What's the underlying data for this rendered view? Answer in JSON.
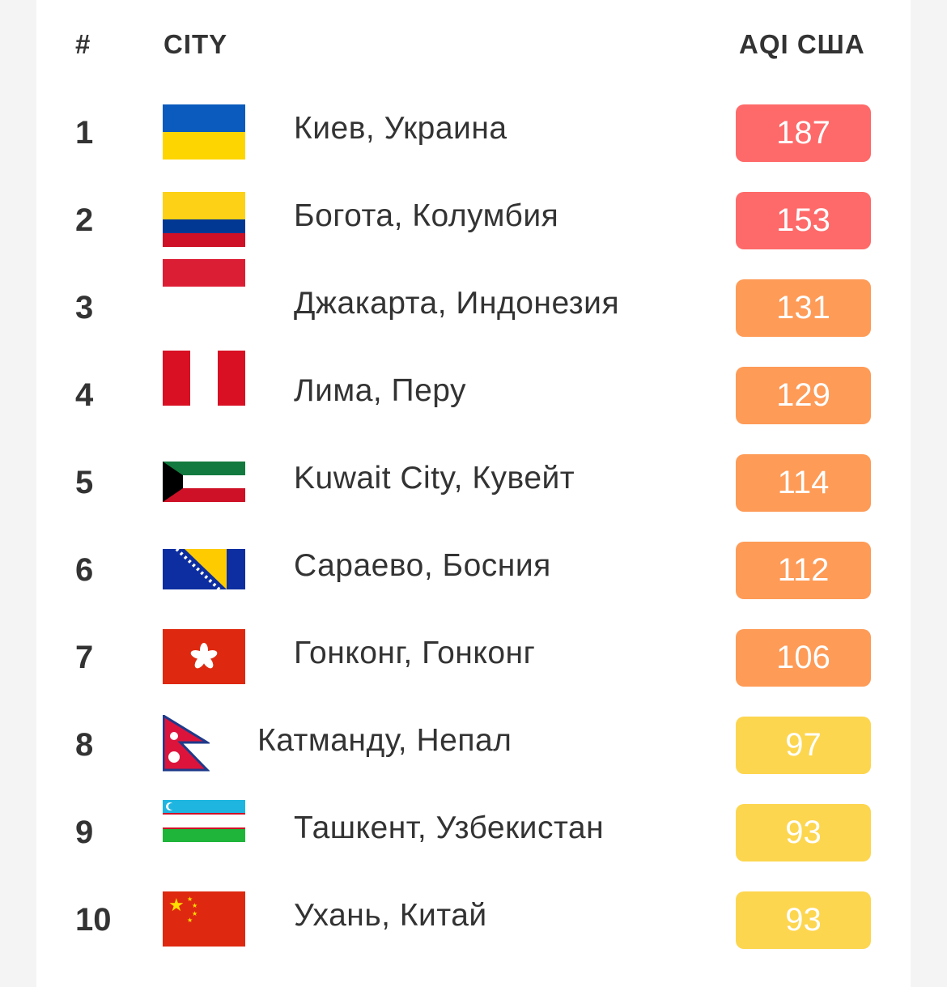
{
  "header": {
    "rank": "#",
    "city": "CITY",
    "aqi": "AQI США"
  },
  "colors": {
    "unhealthy": "#fe6a69",
    "sensitive": "#fe9b57",
    "moderate": "#fdd64f"
  },
  "rows": [
    {
      "rank": "1",
      "flag": "ukraine-flag-icon",
      "city": "Киев, Украина",
      "aqi": "187",
      "level": "unhealthy"
    },
    {
      "rank": "2",
      "flag": "colombia-flag-icon",
      "city": "Богота, Колумбия",
      "aqi": "153",
      "level": "unhealthy"
    },
    {
      "rank": "3",
      "flag": "indonesia-flag-icon",
      "city": "Джакарта, Индонезия",
      "aqi": "131",
      "level": "sensitive"
    },
    {
      "rank": "4",
      "flag": "peru-flag-icon",
      "city": "Лима, Перу",
      "aqi": "129",
      "level": "sensitive"
    },
    {
      "rank": "5",
      "flag": "kuwait-flag-icon",
      "city": "Kuwait City, Кувейт",
      "aqi": "114",
      "level": "sensitive"
    },
    {
      "rank": "6",
      "flag": "bosnia-flag-icon",
      "city": "Сараево, Босния",
      "aqi": "112",
      "level": "sensitive"
    },
    {
      "rank": "7",
      "flag": "hong-kong-flag-icon",
      "city": "Гонконг, Гонконг",
      "aqi": "106",
      "level": "sensitive"
    },
    {
      "rank": "8",
      "flag": "nepal-flag-icon",
      "city": "Катманду, Непал",
      "aqi": "97",
      "level": "moderate"
    },
    {
      "rank": "9",
      "flag": "uzbekistan-flag-icon",
      "city": "Ташкент, Узбекистан",
      "aqi": "93",
      "level": "moderate"
    },
    {
      "rank": "10",
      "flag": "china-flag-icon",
      "city": "Ухань, Китай",
      "aqi": "93",
      "level": "moderate"
    }
  ]
}
